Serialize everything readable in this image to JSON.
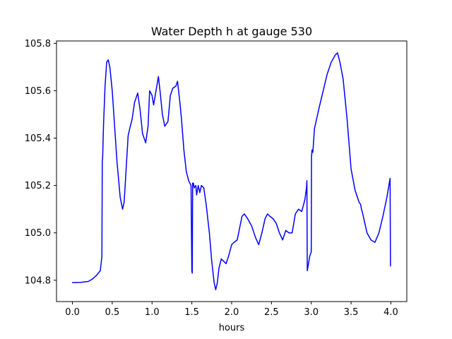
{
  "chart_data": {
    "type": "line",
    "title": "Water Depth h at gauge 530",
    "xlabel": "hours",
    "ylabel": "",
    "xlim": [
      -0.2,
      4.2
    ],
    "ylim": [
      104.71,
      105.81
    ],
    "xticks": [
      0.0,
      0.5,
      1.0,
      1.5,
      2.0,
      2.5,
      3.0,
      3.5,
      4.0
    ],
    "xtick_labels": [
      "0.0",
      "0.5",
      "1.0",
      "1.5",
      "2.0",
      "2.5",
      "3.0",
      "3.5",
      "4.0"
    ],
    "yticks": [
      104.8,
      105.0,
      105.2,
      105.4,
      105.6,
      105.8
    ],
    "ytick_labels": [
      "104.8",
      "105.0",
      "105.2",
      "105.4",
      "105.6",
      "105.8"
    ],
    "grid": false,
    "legend": "none",
    "series": [
      {
        "color": "#0000ff",
        "x": [
          0.0,
          0.1,
          0.2,
          0.25,
          0.3,
          0.35,
          0.37,
          0.375,
          0.38,
          0.39,
          0.41,
          0.43,
          0.45,
          0.47,
          0.5,
          0.53,
          0.56,
          0.6,
          0.63,
          0.65,
          0.68,
          0.7,
          0.72,
          0.75,
          0.78,
          0.82,
          0.85,
          0.88,
          0.92,
          0.95,
          0.97,
          1.0,
          1.02,
          1.05,
          1.08,
          1.1,
          1.13,
          1.16,
          1.2,
          1.23,
          1.26,
          1.3,
          1.32,
          1.35,
          1.37,
          1.4,
          1.43,
          1.46,
          1.49,
          1.5,
          1.505,
          1.51,
          1.515,
          1.52,
          1.53,
          1.55,
          1.56,
          1.58,
          1.6,
          1.62,
          1.65,
          1.68,
          1.72,
          1.75,
          1.78,
          1.8,
          1.82,
          1.84,
          1.87,
          1.9,
          1.93,
          1.96,
          2.0,
          2.03,
          2.07,
          2.1,
          2.13,
          2.16,
          2.2,
          2.25,
          2.3,
          2.34,
          2.38,
          2.42,
          2.45,
          2.48,
          2.52,
          2.56,
          2.6,
          2.64,
          2.68,
          2.72,
          2.76,
          2.8,
          2.84,
          2.88,
          2.92,
          2.94,
          2.945,
          2.95,
          2.96,
          2.98,
          3.0,
          3.003,
          3.01,
          3.02,
          3.04,
          3.06,
          3.1,
          3.15,
          3.2,
          3.25,
          3.3,
          3.33,
          3.36,
          3.4,
          3.45,
          3.5,
          3.55,
          3.6,
          3.62,
          3.63,
          3.64,
          3.66,
          3.7,
          3.75,
          3.8,
          3.85,
          3.9,
          3.95,
          3.985,
          3.99,
          3.995
        ],
        "y": [
          104.79,
          104.791,
          104.795,
          104.805,
          104.82,
          104.84,
          104.9,
          105.3,
          105.32,
          105.45,
          105.62,
          105.72,
          105.73,
          105.7,
          105.6,
          105.45,
          105.3,
          105.15,
          105.1,
          105.13,
          105.3,
          105.41,
          105.44,
          105.48,
          105.55,
          105.59,
          105.52,
          105.42,
          105.38,
          105.45,
          105.6,
          105.58,
          105.54,
          105.6,
          105.66,
          105.6,
          105.5,
          105.45,
          105.47,
          105.58,
          105.61,
          105.62,
          105.64,
          105.55,
          105.48,
          105.35,
          105.26,
          105.22,
          105.2,
          104.84,
          104.83,
          105.21,
          105.2,
          105.21,
          105.19,
          105.2,
          105.16,
          105.2,
          105.17,
          105.2,
          105.19,
          105.12,
          105.0,
          104.88,
          104.79,
          104.76,
          104.79,
          104.85,
          104.89,
          104.88,
          104.87,
          104.9,
          104.95,
          104.96,
          104.97,
          105.02,
          105.07,
          105.08,
          105.06,
          105.03,
          104.98,
          104.95,
          105.0,
          105.06,
          105.08,
          105.07,
          105.06,
          105.04,
          105.0,
          104.97,
          105.01,
          105.0,
          105.0,
          105.08,
          105.1,
          105.09,
          105.14,
          105.19,
          105.22,
          104.84,
          104.86,
          104.9,
          104.92,
          105.32,
          105.35,
          105.34,
          105.44,
          105.47,
          105.53,
          105.6,
          105.67,
          105.72,
          105.75,
          105.76,
          105.72,
          105.65,
          105.48,
          105.27,
          105.18,
          105.13,
          105.12,
          105.1,
          105.09,
          105.06,
          105.0,
          104.97,
          104.96,
          105.0,
          105.07,
          105.15,
          105.22,
          105.23,
          104.86
        ]
      }
    ]
  }
}
